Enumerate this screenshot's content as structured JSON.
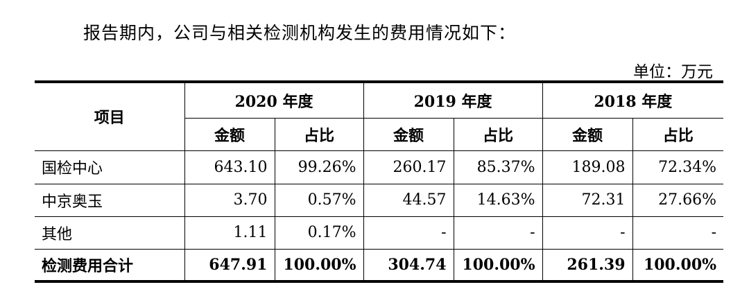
{
  "intro_text": "报告期内，公司与相关检测机构发生的费用情况如下：",
  "unit_text": "单位：万元",
  "table": {
    "header_item": "项目",
    "years": [
      "2020 年度",
      "2019 年度",
      "2018 年度"
    ],
    "sub_headers": [
      "金额",
      "占比",
      "金额",
      "占比",
      "金额",
      "占比"
    ],
    "rows": [
      {
        "label": "国检中心",
        "cells": [
          "643.10",
          "99.26%",
          "260.17",
          "85.37%",
          "189.08",
          "72.34%"
        ]
      },
      {
        "label": "中京奥玉",
        "cells": [
          "3.70",
          "0.57%",
          "44.57",
          "14.63%",
          "72.31",
          "27.66%"
        ]
      },
      {
        "label": "其他",
        "cells": [
          "1.11",
          "0.17%",
          "-",
          "-",
          "-",
          "-"
        ]
      },
      {
        "label": "检测费用合计",
        "cells": [
          "647.91",
          "100.00%",
          "304.74",
          "100.00%",
          "261.39",
          "100.00%"
        ]
      }
    ]
  }
}
